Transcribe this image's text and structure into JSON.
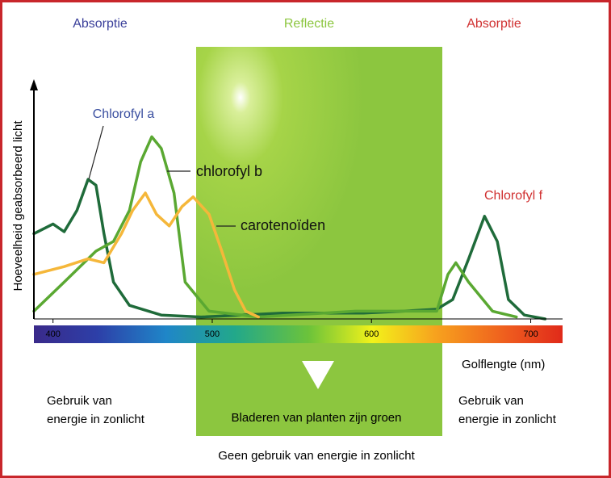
{
  "chart_data": {
    "type": "line",
    "headers": [
      "Absorptie",
      "Reflectie",
      "Absorptie"
    ],
    "y_label": "Hoeveelheid geabsorbeerd licht",
    "x_label": "Golflengte (nm)",
    "xlim": [
      388,
      720
    ],
    "ylim": [
      0,
      100
    ],
    "xticks": [
      400,
      500,
      600,
      700
    ],
    "series": [
      {
        "name": "Chlorofyl a",
        "color": "#1f6b3a",
        "x": [
          388,
          400,
          407,
          415,
          422,
          427,
          432,
          438,
          448,
          468,
          493,
          544,
          595,
          620,
          641,
          651,
          661,
          671,
          679,
          686,
          696,
          709
        ],
        "values": [
          44,
          49,
          45,
          56,
          72,
          69,
          44,
          19,
          7,
          2,
          1,
          3,
          3,
          4,
          5,
          10,
          31,
          53,
          40,
          10,
          2,
          0
        ]
      },
      {
        "name": "chlorofyl b",
        "color": "#5aa832",
        "x": [
          388,
          407,
          427,
          438,
          448,
          455,
          462,
          468,
          476,
          483,
          498,
          529,
          590,
          641,
          648,
          653,
          661,
          676,
          691
        ],
        "values": [
          4,
          19,
          35,
          40,
          56,
          81,
          94,
          88,
          65,
          19,
          4,
          1,
          4,
          4,
          23,
          29,
          19,
          4,
          1
        ]
      },
      {
        "name": "carotenoïden",
        "color": "#f5b73a",
        "x": [
          388,
          407,
          422,
          432,
          443,
          450,
          458,
          465,
          473,
          481,
          488,
          498,
          506,
          514,
          521,
          529
        ],
        "values": [
          23,
          27,
          31,
          29,
          44,
          56,
          65,
          54,
          48,
          58,
          63,
          54,
          35,
          15,
          4,
          1
        ]
      }
    ],
    "annotations": [
      "Chlorofyl f"
    ],
    "left_note": [
      "Gebruik van",
      "energie in zonlicht"
    ],
    "right_note": [
      "Gebruik van",
      "energie in zonlicht"
    ],
    "reflect_note": "Bladeren van planten zijn groen",
    "footer": "Geen gebruik van energie in zonlicht"
  }
}
